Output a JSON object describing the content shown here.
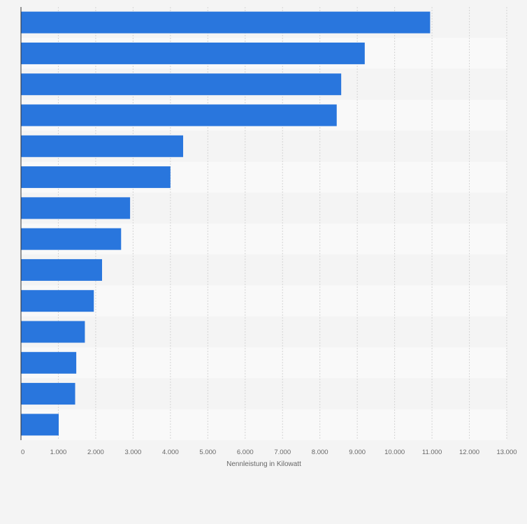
{
  "chart_data": {
    "type": "bar",
    "orientation": "horizontal",
    "categories": [
      "",
      "",
      "",
      "",
      "",
      "",
      "",
      "",
      "",
      "",
      "",
      "",
      "",
      ""
    ],
    "values": [
      10950,
      9200,
      8570,
      8450,
      4340,
      4000,
      2920,
      2680,
      2170,
      1950,
      1710,
      1480,
      1450,
      1010
    ],
    "xlabel": "Nennleistung in Kilowatt",
    "ylabel": "",
    "xlim": [
      0,
      13000
    ],
    "xticks": [
      0,
      1000,
      2000,
      3000,
      4000,
      5000,
      6000,
      7000,
      8000,
      9000,
      10000,
      11000,
      12000,
      13000
    ],
    "xtick_labels": [
      "0",
      "1.000",
      "2.000",
      "3.000",
      "4.000",
      "5.000",
      "6.000",
      "7.000",
      "8.000",
      "9.000",
      "10.000",
      "11.000",
      "12.000",
      "13.000"
    ],
    "grid": true,
    "bar_color": "#2976dd",
    "band_colors": [
      "#f4f4f4",
      "#f9f9f9"
    ],
    "gridline_color": "#d4d4d4",
    "axis_color": "#333333"
  }
}
